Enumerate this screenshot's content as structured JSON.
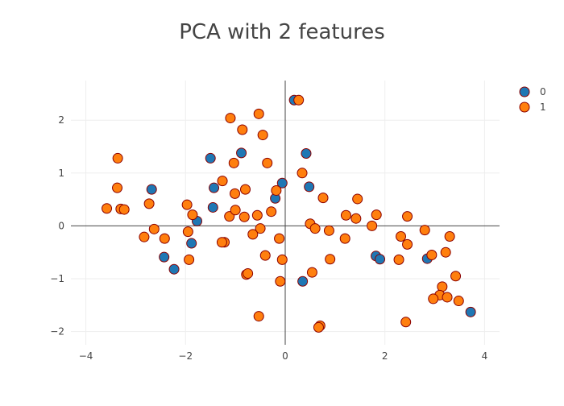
{
  "chart_data": {
    "type": "scatter",
    "title": "PCA with 2 features",
    "xlabel": "",
    "ylabel": "",
    "xlim": [
      -4.3,
      4.3
    ],
    "ylim": [
      -2.25,
      2.75
    ],
    "xticks": [
      -4,
      -2,
      0,
      2,
      4
    ],
    "yticks": [
      -2,
      -1,
      0,
      1,
      2
    ],
    "xtick_labels": [
      "−4",
      "−2",
      "0",
      "2",
      "4"
    ],
    "ytick_labels": [
      "−2",
      "−1",
      "0",
      "1",
      "2"
    ],
    "grid": true,
    "zero_lines": true,
    "legend_position": "top-right",
    "colors": {
      "0": "#1f77b4",
      "1": "#ff7f0e",
      "marker_edge": "#8b0000"
    },
    "series": [
      {
        "name": "0",
        "points": [
          [
            0.18,
            2.38
          ],
          [
            0.42,
            1.37
          ],
          [
            -0.88,
            1.38
          ],
          [
            -1.5,
            1.28
          ],
          [
            -1.43,
            0.72
          ],
          [
            -2.68,
            0.69
          ],
          [
            -1.45,
            0.35
          ],
          [
            -1.77,
            0.09
          ],
          [
            -1.88,
            -0.33
          ],
          [
            -2.43,
            -0.59
          ],
          [
            -2.23,
            -0.82
          ],
          [
            0.48,
            0.74
          ],
          [
            -0.06,
            0.81
          ],
          [
            -0.2,
            0.52
          ],
          [
            0.35,
            -1.05
          ],
          [
            1.82,
            -0.57
          ],
          [
            1.9,
            -0.63
          ],
          [
            2.85,
            -0.62
          ],
          [
            3.72,
            -1.63
          ]
        ]
      },
      {
        "name": "1",
        "points": [
          [
            0.27,
            2.38
          ],
          [
            -0.53,
            2.12
          ],
          [
            -1.1,
            2.04
          ],
          [
            -0.86,
            1.82
          ],
          [
            -0.45,
            1.72
          ],
          [
            -3.36,
            1.28
          ],
          [
            -0.36,
            1.19
          ],
          [
            -1.03,
            1.19
          ],
          [
            0.34,
            1.0
          ],
          [
            -1.26,
            0.85
          ],
          [
            -3.37,
            0.72
          ],
          [
            -0.8,
            0.69
          ],
          [
            -1.01,
            0.61
          ],
          [
            -0.18,
            0.67
          ],
          [
            0.76,
            0.53
          ],
          [
            1.45,
            0.51
          ],
          [
            -2.73,
            0.42
          ],
          [
            -1.97,
            0.4
          ],
          [
            -3.58,
            0.33
          ],
          [
            -3.3,
            0.32
          ],
          [
            -3.23,
            0.31
          ],
          [
            -1.86,
            0.21
          ],
          [
            -0.56,
            0.2
          ],
          [
            -0.82,
            0.17
          ],
          [
            -1.12,
            0.18
          ],
          [
            -1.0,
            0.3
          ],
          [
            -0.28,
            0.27
          ],
          [
            1.22,
            0.2
          ],
          [
            1.42,
            0.14
          ],
          [
            1.83,
            0.21
          ],
          [
            2.45,
            0.18
          ],
          [
            0.5,
            0.04
          ],
          [
            0.6,
            -0.05
          ],
          [
            0.88,
            -0.09
          ],
          [
            1.74,
            0.0
          ],
          [
            -2.63,
            -0.06
          ],
          [
            -1.95,
            -0.11
          ],
          [
            -0.5,
            -0.05
          ],
          [
            -0.65,
            -0.16
          ],
          [
            -2.42,
            -0.24
          ],
          [
            -2.83,
            -0.21
          ],
          [
            -0.12,
            -0.24
          ],
          [
            1.2,
            -0.24
          ],
          [
            2.32,
            -0.2
          ],
          [
            2.8,
            -0.08
          ],
          [
            3.3,
            -0.2
          ],
          [
            2.45,
            -0.35
          ],
          [
            -1.22,
            -0.31
          ],
          [
            -1.27,
            -0.31
          ],
          [
            -1.93,
            -0.64
          ],
          [
            -0.4,
            -0.56
          ],
          [
            -0.06,
            -0.64
          ],
          [
            0.9,
            -0.63
          ],
          [
            2.28,
            -0.64
          ],
          [
            2.94,
            -0.55
          ],
          [
            3.22,
            -0.5
          ],
          [
            -0.78,
            -0.92
          ],
          [
            -0.75,
            -0.9
          ],
          [
            0.54,
            -0.88
          ],
          [
            3.42,
            -0.95
          ],
          [
            -0.1,
            -1.05
          ],
          [
            3.15,
            -1.15
          ],
          [
            3.1,
            -1.31
          ],
          [
            2.97,
            -1.38
          ],
          [
            3.25,
            -1.35
          ],
          [
            3.48,
            -1.42
          ],
          [
            -0.53,
            -1.71
          ],
          [
            0.7,
            -1.89
          ],
          [
            0.67,
            -1.92
          ],
          [
            2.42,
            -1.82
          ]
        ]
      }
    ]
  }
}
